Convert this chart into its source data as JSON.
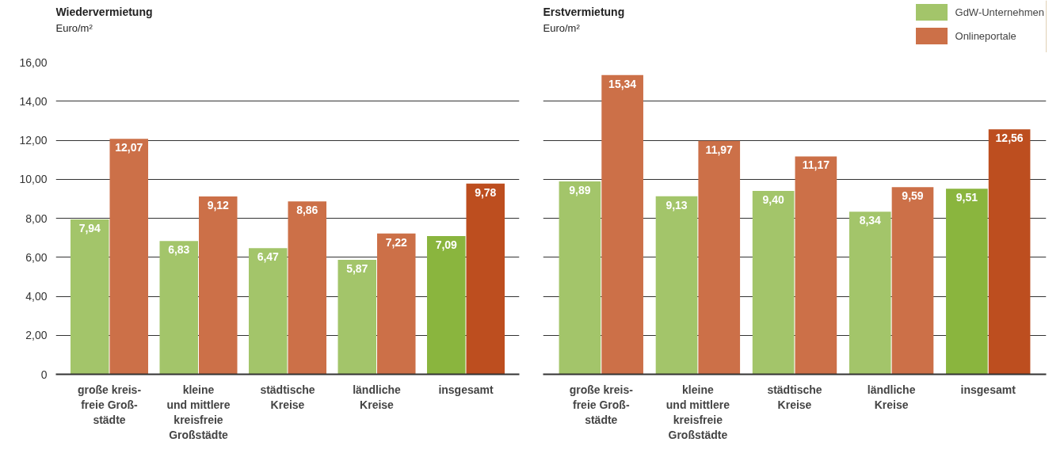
{
  "chart_data": [
    {
      "type": "bar",
      "title": "Wiedervermietung",
      "subtitle": "Euro/m²",
      "categories": [
        "große kreis-\nfreie Groß-\nstädte",
        "kleine\nund mittlere\nkreisfreie\nGroßstädte",
        "städtische\nKreise",
        "ländliche\nKreise",
        "insgesamt"
      ],
      "series": [
        {
          "colors": [
            "#a3c56a",
            "#a3c56a",
            "#a3c56a",
            "#a3c56a",
            "#8ab53e"
          ],
          "values": [
            7.94,
            6.83,
            6.47,
            5.87,
            7.09
          ],
          "value_labels": [
            "7,94",
            "6,83",
            "6,47",
            "5,87",
            "7,09"
          ]
        },
        {
          "colors": [
            "#cc7048",
            "#cc7048",
            "#cc7048",
            "#cc7048",
            "#bd4e1f"
          ],
          "values": [
            12.07,
            9.12,
            8.86,
            7.22,
            9.78
          ],
          "value_labels": [
            "12,07",
            "9,12",
            "8,86",
            "7,22",
            "9,78"
          ]
        }
      ],
      "ylim": [
        0,
        16
      ],
      "yticks": [
        0,
        {
          "value": 2,
          "label": "2,00"
        },
        {
          "value": 4,
          "label": "4,00"
        },
        {
          "value": 6,
          "label": "6,00"
        },
        {
          "value": 8,
          "label": "8,00"
        },
        {
          "value": 10,
          "label": "10,00"
        },
        {
          "value": 12,
          "label": "12,00"
        },
        {
          "value": 14,
          "label": "14,00"
        },
        {
          "value": 16,
          "label": "16,00"
        }
      ],
      "grid": "y"
    },
    {
      "type": "bar",
      "title": "Erstvermietung",
      "subtitle": "Euro/m²",
      "categories": [
        "große kreis-\nfreie Groß-\nstädte",
        "kleine\nund mittlere\nkreisfreie\nGroßstädte",
        "städtische\nKreise",
        "ländliche\nKreise",
        "insgesamt"
      ],
      "series": [
        {
          "name": "GdW-Unternehmen",
          "colors": [
            "#a3c56a",
            "#a3c56a",
            "#a3c56a",
            "#a3c56a",
            "#8ab53e"
          ],
          "values": [
            9.89,
            9.13,
            9.4,
            8.34,
            9.51
          ],
          "value_labels": [
            "9,89",
            "9,13",
            "9,40",
            "8,34",
            "9,51"
          ]
        },
        {
          "name": "Onlineportale",
          "colors": [
            "#cc7048",
            "#cc7048",
            "#cc7048",
            "#cc7048",
            "#bd4e1f"
          ],
          "values": [
            15.34,
            11.97,
            11.17,
            9.59,
            12.56
          ],
          "value_labels": [
            "15,34",
            "11,97",
            "11,17",
            "9,59",
            "12,56"
          ]
        }
      ],
      "ylim": [
        0,
        16
      ],
      "yticks": [
        0,
        2,
        4,
        6,
        8,
        10,
        12,
        14,
        16
      ],
      "grid": "y",
      "tick_labels": "x",
      "legend": "top right"
    }
  ]
}
